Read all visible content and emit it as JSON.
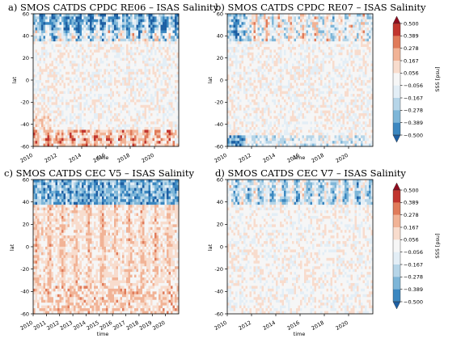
{
  "chart_data": [
    {
      "type": "heatmap",
      "panel": "a",
      "title": "a) SMOS CATDS CPDC RE06 – ISAS Salinity",
      "xlabel": "time",
      "ylabel": "lat",
      "xlim": [
        2010,
        2022
      ],
      "ylim": [
        -60,
        60
      ],
      "xticks": [
        "2010",
        "2012",
        "2014",
        "2016",
        "2018",
        "2020"
      ],
      "yticks": [
        "-60",
        "-40",
        "-20",
        "0",
        "20",
        "40",
        "60"
      ],
      "pattern": {
        "north_band": "strong seasonal negative/positive oscillation",
        "south_band": "positive anomalies",
        "interior": "weak mixed"
      }
    },
    {
      "type": "heatmap",
      "panel": "b",
      "title": "b) SMOS CATDS CPDC RE07 – ISAS Salinity",
      "xlabel": "time",
      "ylabel": "lat",
      "xlim": [
        2010,
        2022
      ],
      "ylim": [
        -60,
        60
      ],
      "xticks": [
        "2010",
        "2012",
        "2014",
        "2016",
        "2018",
        "2020"
      ],
      "yticks": [
        "-60",
        "-40",
        "-20",
        "0",
        "20",
        "40",
        "60"
      ],
      "pattern": {
        "north_band": "seasonal oscillation, weaker after 2011",
        "south_band": "mostly negative near edge",
        "interior": "weak mixed"
      }
    },
    {
      "type": "heatmap",
      "panel": "c",
      "title": "c) SMOS CATDS CEC V5 – ISAS Salinity",
      "xlabel": "time",
      "ylabel": "lat",
      "xlim": [
        2010,
        2021
      ],
      "ylim": [
        -60,
        60
      ],
      "xticks": [
        "2010",
        "2011",
        "2012",
        "2013",
        "2014",
        "2015",
        "2016",
        "2017",
        "2018",
        "2019",
        "2020"
      ],
      "yticks": [
        "-60",
        "-40",
        "-20",
        "0",
        "20",
        "40",
        "60"
      ],
      "pattern": {
        "north_band": "negative with seasonal streaks",
        "south_band": "weak positive",
        "interior": "positive streaks"
      }
    },
    {
      "type": "heatmap",
      "panel": "d",
      "title": "d) SMOS CATDS CEC V7 – ISAS Salinity",
      "xlabel": "time",
      "ylabel": "lat",
      "xlim": [
        2010,
        2022
      ],
      "ylim": [
        -60,
        60
      ],
      "xticks": [
        "2010",
        "2012",
        "2014",
        "2016",
        "2018",
        "2020"
      ],
      "yticks": [
        "-60",
        "-40",
        "-20",
        "0",
        "20",
        "40",
        "60"
      ],
      "pattern": {
        "north_band": "seasonal oscillation",
        "south_band": "weak",
        "interior": "weak mixed"
      }
    }
  ],
  "colorbar": {
    "label": "SSS [psu]",
    "ticks": [
      "0.500",
      "0.389",
      "0.278",
      "0.167",
      "0.056",
      "−0.056",
      "−0.167",
      "−0.278",
      "−0.389",
      "−0.500"
    ],
    "levels": [
      -0.5,
      -0.389,
      -0.278,
      -0.167,
      -0.056,
      0.056,
      0.167,
      0.278,
      0.389,
      0.5
    ],
    "colors": [
      "#1d5fa3",
      "#3b87c0",
      "#7eb6d8",
      "#b6d5e8",
      "#e3eef6",
      "#f6f6f6",
      "#f8dccd",
      "#f1b396",
      "#e07b5a",
      "#c1352e",
      "#8f0d1f"
    ]
  }
}
